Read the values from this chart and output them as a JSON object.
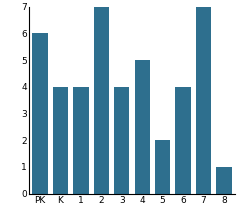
{
  "categories": [
    "PK",
    "K",
    "1",
    "2",
    "3",
    "4",
    "5",
    "6",
    "7",
    "8"
  ],
  "values": [
    6,
    4,
    4,
    7,
    4,
    5,
    2,
    4,
    7,
    1
  ],
  "bar_color": "#2e6f8e",
  "ylim": [
    0,
    7
  ],
  "yticks": [
    0,
    1,
    2,
    3,
    4,
    5,
    6,
    7
  ],
  "background_color": "#ffffff",
  "tick_fontsize": 6.5,
  "bar_width": 0.75
}
